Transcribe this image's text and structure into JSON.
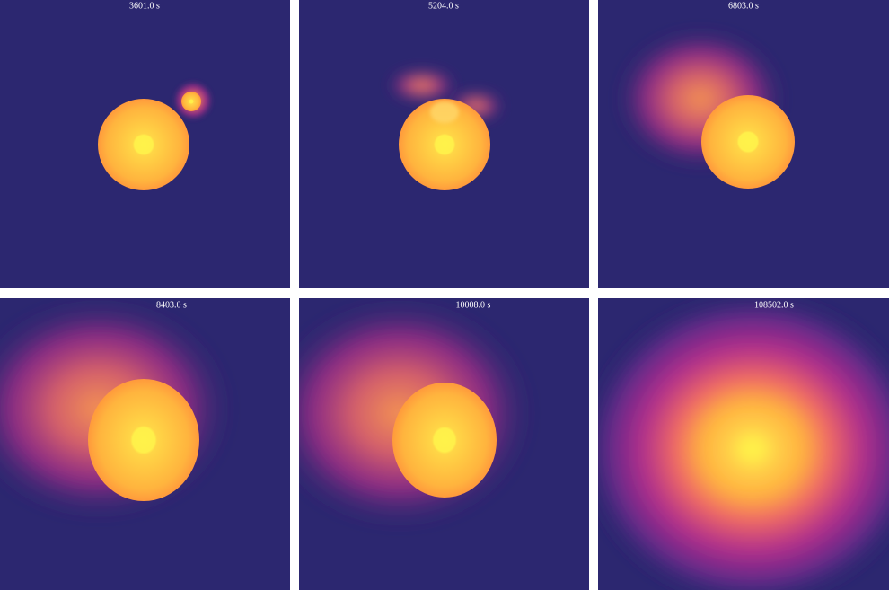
{
  "panels": [
    {
      "label": "3601.0 s"
    },
    {
      "label": "5204.0 s"
    },
    {
      "label": "6803.0 s"
    },
    {
      "label": "8403.0 s"
    },
    {
      "label": "10008.0 s"
    },
    {
      "label": "108502.0 s"
    }
  ]
}
